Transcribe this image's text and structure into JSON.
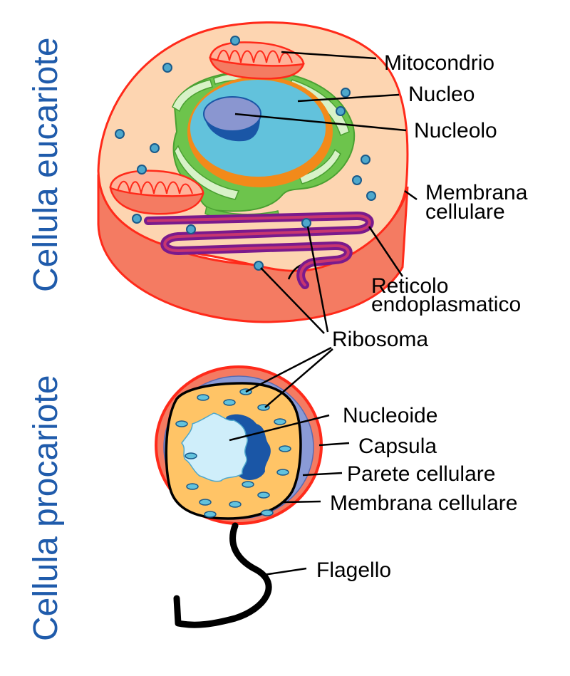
{
  "side_titles": {
    "eukaryote": "Cellula eucariote",
    "prokaryote": "Cellula procariote"
  },
  "eukaryote_labels": {
    "mitochondrion": "Mitocondrio",
    "nucleus": "Nucleo",
    "nucleolus": "Nucleolo",
    "membrane_line1": "Membrana",
    "membrane_line2": "cellulare",
    "er_line1": "Reticolo",
    "er_line2": "endoplasmatico"
  },
  "shared_labels": {
    "ribosome": "Ribosoma"
  },
  "prokaryote_labels": {
    "nucleoid": "Nucleoide",
    "capsule": "Capsula",
    "cell_wall": "Parete cellulare",
    "cell_membrane": "Membrana cellulare",
    "flagellum": "Flagello"
  },
  "colors": {
    "title_blue": "#1f5bab",
    "membrane_red": "#ff2a1a",
    "cell_side": "#f47b62",
    "cytoplasm_euk": "#fdd5b1",
    "nucleus": "#62c2dc",
    "nucleolus": "#8a96d0",
    "er": "#7a1a8c",
    "golgi_green": "#6dc44c",
    "cytoplasm_pro": "#ffc466",
    "cell_wall": "#8a9ad6",
    "nucleoid": "#cfeefa"
  }
}
